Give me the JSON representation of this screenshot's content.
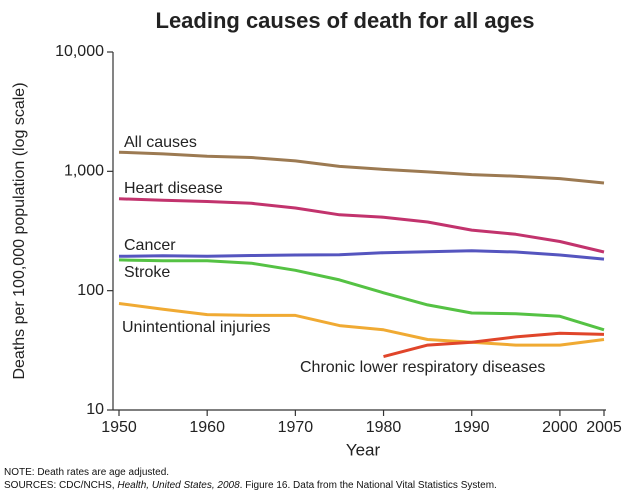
{
  "chart_data": {
    "type": "line",
    "title": "Leading causes of death for all ages",
    "xlabel": "Year",
    "ylabel": "Deaths per 100,000 population (log scale)",
    "log_y": true,
    "x": [
      1950,
      1955,
      1960,
      1965,
      1970,
      1975,
      1980,
      1985,
      1990,
      1995,
      2000,
      2005
    ],
    "xlim": [
      1950,
      2005
    ],
    "xticks": [
      1950,
      1960,
      1970,
      1980,
      1990,
      2000,
      2005
    ],
    "ylim": [
      10,
      10000
    ],
    "yticks": [
      10,
      100,
      {
        "value": 1000,
        "label": "1,000"
      },
      {
        "value": 10000,
        "label": "10,000"
      }
    ],
    "series": [
      {
        "name": "All causes",
        "color": "#9c7a52",
        "values": [
          1446,
          1400,
          1339,
          1306,
          1223,
          1100,
          1039,
          990,
          939,
          910,
          869,
          799
        ]
      },
      {
        "name": "Heart disease",
        "color": "#c2336d",
        "values": [
          589,
          573,
          559,
          540,
          493,
          432,
          413,
          376,
          322,
          297,
          258,
          211
        ]
      },
      {
        "name": "Cancer",
        "color": "#5555bf",
        "values": [
          194,
          196,
          194,
          197,
          199,
          200,
          208,
          212,
          216,
          211,
          199,
          184
        ]
      },
      {
        "name": "Stroke",
        "color": "#55c244",
        "values": [
          181,
          178,
          178,
          170,
          148,
          123,
          96,
          76,
          65,
          64,
          61,
          47
        ]
      },
      {
        "name": "Unintentional injuries",
        "color": "#f0aa33",
        "values": [
          78,
          70,
          63,
          62,
          62,
          51,
          47,
          39,
          37,
          35,
          35,
          39
        ]
      },
      {
        "name": "Chronic lower respiratory diseases",
        "color": "#e0452a",
        "values": [
          null,
          null,
          null,
          null,
          null,
          null,
          28,
          35,
          37,
          41,
          44,
          43
        ]
      }
    ],
    "note": "NOTE: Death rates are age adjusted.",
    "sources": [
      "SOURCES: CDC/NCHS, ",
      "Health, United States, 2008",
      ". Figure 16. Data from the National Vital Statistics System."
    ]
  }
}
